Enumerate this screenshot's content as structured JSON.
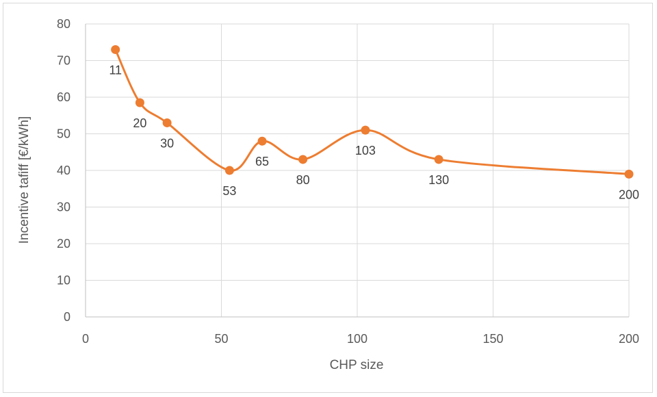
{
  "chart_data": {
    "type": "line",
    "title": "",
    "xlabel": "CHP size",
    "ylabel": "Incentive tafiff [€/kWh]",
    "xlim": [
      0,
      200
    ],
    "ylim": [
      0,
      80
    ],
    "x_ticks": [
      0,
      50,
      100,
      150,
      200
    ],
    "y_ticks": [
      0,
      10,
      20,
      30,
      40,
      50,
      60,
      70,
      80
    ],
    "grid": true,
    "smooth": true,
    "legend": "none",
    "series": [
      {
        "color": "#ed7d31",
        "points": [
          {
            "x": 11,
            "y": 73,
            "label": "11"
          },
          {
            "x": 20,
            "y": 58.5,
            "label": "20"
          },
          {
            "x": 30,
            "y": 53,
            "label": "30"
          },
          {
            "x": 53,
            "y": 40,
            "label": "53"
          },
          {
            "x": 65,
            "y": 48,
            "label": "65"
          },
          {
            "x": 80,
            "y": 43,
            "label": "80"
          },
          {
            "x": 103,
            "y": 51,
            "label": "103"
          },
          {
            "x": 130,
            "y": 43,
            "label": "130"
          },
          {
            "x": 200,
            "y": 39,
            "label": "200"
          }
        ]
      }
    ]
  }
}
